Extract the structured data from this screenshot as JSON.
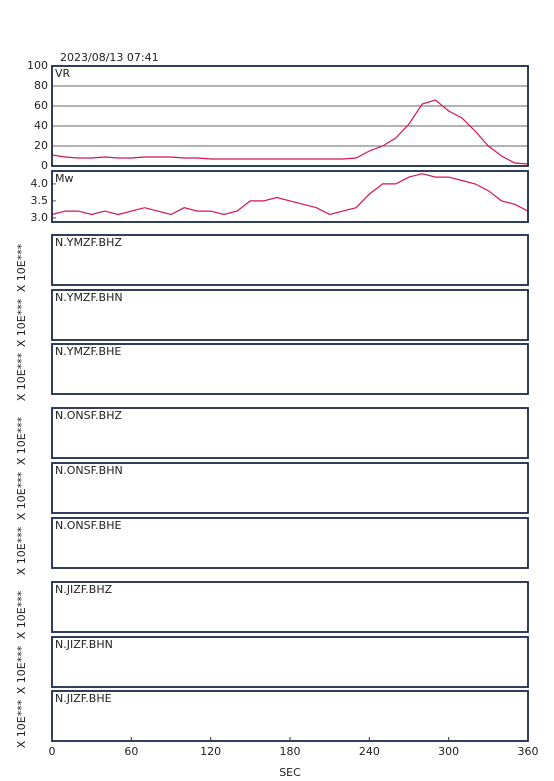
{
  "chart_data": [
    {
      "type": "line",
      "title": "2023/08/13 07:41",
      "label": "VR",
      "color": "#d4144e",
      "x": [
        0,
        10,
        20,
        30,
        40,
        50,
        60,
        70,
        80,
        90,
        100,
        110,
        120,
        130,
        140,
        150,
        160,
        170,
        180,
        190,
        200,
        210,
        220,
        230,
        240,
        250,
        260,
        270,
        280,
        290,
        300,
        310,
        320,
        330,
        340,
        350,
        360
      ],
      "values": [
        11,
        9,
        8,
        8,
        9,
        8,
        8,
        9,
        9,
        9,
        8,
        8,
        7,
        7,
        7,
        7,
        7,
        7,
        7,
        7,
        7,
        7,
        7,
        8,
        15,
        20,
        28,
        42,
        62,
        66,
        55,
        48,
        35,
        20,
        10,
        3,
        2
      ],
      "xlim": [
        0,
        360
      ],
      "ylim": [
        0,
        100
      ],
      "yticks": [
        0,
        20,
        40,
        60,
        80,
        100
      ],
      "grid": true
    },
    {
      "type": "line",
      "label": "Mw",
      "color": "#d4144e",
      "x": [
        0,
        10,
        20,
        30,
        40,
        50,
        60,
        70,
        80,
        90,
        100,
        110,
        120,
        130,
        140,
        150,
        160,
        170,
        180,
        190,
        200,
        210,
        220,
        230,
        240,
        250,
        260,
        270,
        280,
        290,
        300,
        310,
        320,
        330,
        340,
        350,
        360
      ],
      "values": [
        3.1,
        3.2,
        3.2,
        3.1,
        3.2,
        3.1,
        3.2,
        3.3,
        3.2,
        3.1,
        3.3,
        3.2,
        3.2,
        3.1,
        3.2,
        3.5,
        3.5,
        3.6,
        3.5,
        3.4,
        3.3,
        3.1,
        3.2,
        3.3,
        3.7,
        4.0,
        4.0,
        4.2,
        4.3,
        4.2,
        4.2,
        4.1,
        4.0,
        3.8,
        3.5,
        3.4,
        3.2
      ],
      "xlim": [
        0,
        360
      ],
      "ylim": [
        2.88,
        4.38
      ],
      "yticks": [
        {
          "value": 3,
          "label": "3.0"
        },
        3.5,
        {
          "value": 4,
          "label": "4.0"
        }
      ],
      "grid": false
    },
    {
      "type": "waveform",
      "label": "N.YMZF.BHZ",
      "ylabel": "X 10E***"
    },
    {
      "type": "waveform",
      "label": "N.YMZF.BHN",
      "ylabel": "X 10E***"
    },
    {
      "type": "waveform",
      "label": "N.YMZF.BHE",
      "ylabel": "X 10E***"
    },
    {
      "type": "waveform",
      "label": "N.ONSF.BHZ",
      "ylabel": "X 10E***"
    },
    {
      "type": "waveform",
      "label": "N.ONSF.BHN",
      "ylabel": "X 10E***"
    },
    {
      "type": "waveform",
      "label": "N.ONSF.BHE",
      "ylabel": "X 10E***"
    },
    {
      "type": "waveform",
      "label": "N.JIZF.BHZ",
      "ylabel": "X 10E***"
    },
    {
      "type": "waveform",
      "label": "N.JIZF.BHN",
      "ylabel": "X 10E***"
    },
    {
      "type": "waveform",
      "label": "N.JIZF.BHE",
      "ylabel": "X 10E***",
      "xlim": [
        0,
        360
      ],
      "xticks": [
        0,
        60,
        120,
        180,
        240,
        300,
        360
      ],
      "xlabel": "SEC"
    }
  ]
}
